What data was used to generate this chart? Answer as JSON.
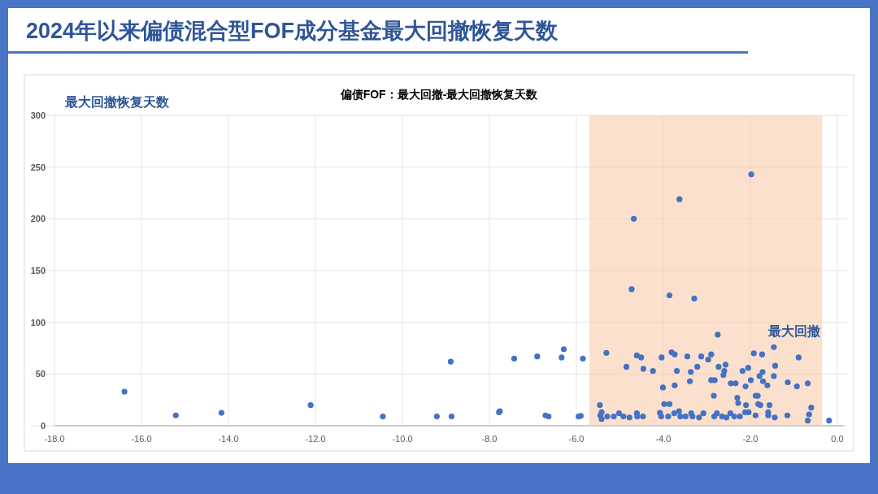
{
  "chart_data": {
    "type": "scatter",
    "title": "2024年以来偏债混合型FOF成分基金最大回撤恢复天数",
    "subtitle": "偏债FOF：最大回撤-最大回撤恢复天数",
    "ylabel": "最大回撤恢复天数",
    "x": [
      -16.39,
      -15.21,
      -14.16,
      -12.11,
      -10.45,
      -9.21,
      -8.87,
      -8.89,
      -7.78,
      -7.76,
      -7.43,
      -6.9,
      -6.71,
      -6.64,
      -6.34,
      -6.29,
      -5.95,
      -5.9,
      -5.85,
      -4.73,
      -4.68,
      -3.86,
      -3.63,
      -3.29,
      -2.75,
      -1.98,
      -1.46,
      -0.19,
      -5.31,
      -4.61,
      -4.51,
      -4.85,
      -4.46,
      -4.24,
      -4.04,
      -3.81,
      -3.74,
      -3.69,
      -3.45,
      -3.37,
      -3.22,
      -3.13,
      -2.97,
      -2.9,
      -2.73,
      -2.57,
      -2.6,
      -2.62,
      -2.18,
      -2.05,
      -1.92,
      -1.73,
      -1.43,
      -1.46,
      -1.72,
      -1.79,
      -1.71,
      -1.61,
      -1.99,
      -2.11,
      -1.14,
      -0.93,
      -0.89,
      -0.68,
      -2.45,
      -2.34,
      -2.9,
      -2.82,
      -3.39,
      -3.74,
      -4.01,
      -2.84,
      -2.3,
      -2.28,
      -2.1,
      -1.88,
      -1.83,
      -1.82,
      -1.77,
      -1.56,
      -3.98,
      -3.86,
      -5.46,
      -0.6,
      -0.65,
      -0.68,
      -5.42,
      -5.45,
      -5.42,
      -5.29,
      -5.14,
      -5.02,
      -4.92,
      -4.78,
      -4.61,
      -4.6,
      -4.47,
      -4.08,
      -4.05,
      -3.89,
      -3.75,
      -3.64,
      -3.61,
      -3.49,
      -3.36,
      -3.33,
      -3.18,
      -3.08,
      -2.83,
      -2.77,
      -2.65,
      -2.55,
      -2.46,
      -2.37,
      -2.24,
      -2.12,
      -2.04,
      -1.88,
      -1.59,
      -1.59,
      -1.44,
      -1.15
    ],
    "values": [
      33,
      10,
      12.5,
      20,
      9,
      9,
      9,
      62,
      13,
      14,
      65,
      67,
      10,
      9,
      66,
      74,
      9,
      9.5,
      65,
      132,
      200,
      126,
      219,
      123,
      88,
      243,
      76,
      5,
      70.5,
      68,
      66,
      57,
      55,
      53,
      66,
      71,
      69,
      53,
      67,
      52,
      57,
      67,
      64,
      69,
      57,
      59,
      53,
      49,
      53,
      56,
      70,
      69,
      58,
      48,
      52,
      48,
      43,
      39,
      44,
      38,
      42,
      38,
      66,
      41,
      41,
      41,
      44,
      44,
      43,
      39,
      37,
      29,
      27,
      22,
      20,
      29,
      29,
      21,
      20,
      20,
      21,
      21,
      20,
      17.5,
      11,
      5,
      13,
      10,
      6.5,
      9,
      9,
      12,
      9,
      8,
      12,
      9,
      9,
      12.5,
      9,
      9,
      12,
      14,
      9,
      9,
      12,
      9,
      8,
      12,
      9,
      12,
      9,
      8,
      12,
      9,
      9,
      13,
      13,
      10,
      13,
      10,
      8,
      10
    ],
    "color": "#4472c4",
    "marker": "circle",
    "grid": true,
    "xlim": [
      -18,
      0
    ],
    "ylim": [
      0,
      300
    ],
    "xticks": [
      {
        "value": -18,
        "label": "-18.0"
      },
      {
        "value": -16,
        "label": "-16.0"
      },
      {
        "value": -14,
        "label": "-14.0"
      },
      {
        "value": -12,
        "label": "-12.0"
      },
      {
        "value": -10,
        "label": "-10.0"
      },
      {
        "value": -8,
        "label": "-8.0"
      },
      {
        "value": -6,
        "label": "-6.0"
      },
      {
        "value": -4,
        "label": "-4.0"
      },
      {
        "value": -2,
        "label": "-2.0"
      },
      {
        "value": 0,
        "label": "0.0"
      }
    ],
    "yticks": [
      0,
      50,
      100,
      150,
      200,
      250,
      300
    ],
    "bands": [
      {
        "axis": "x",
        "from": -5.7,
        "to": -0.35,
        "label": "最大回撤",
        "color": "#f8cbad"
      }
    ]
  }
}
